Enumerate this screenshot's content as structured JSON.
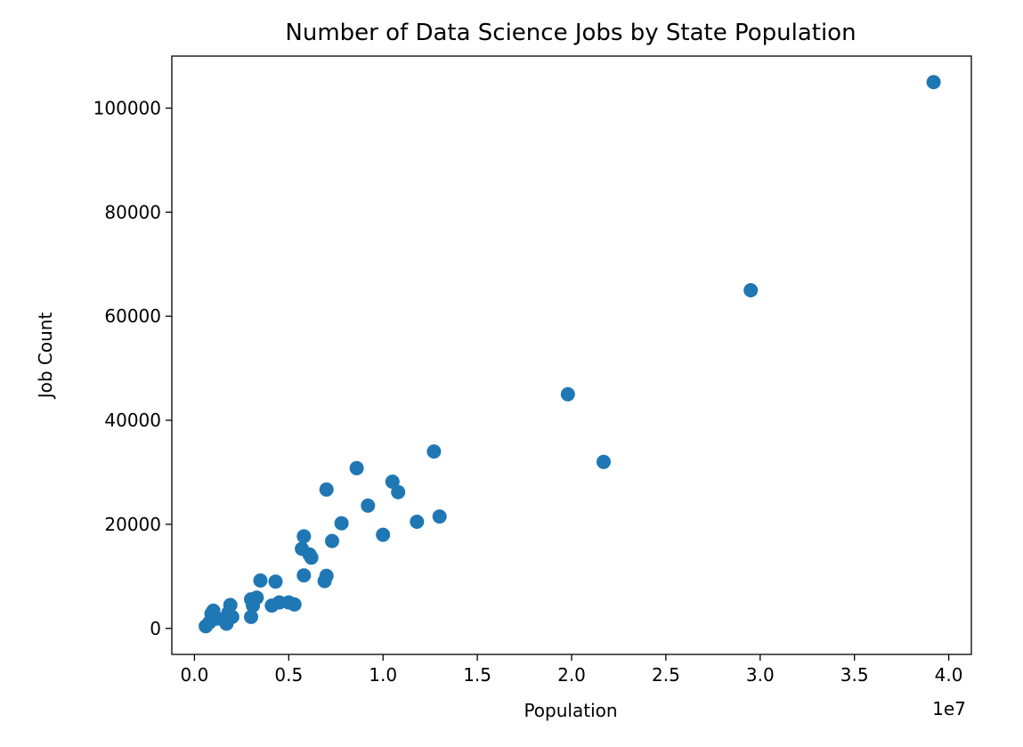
{
  "chart_data": {
    "type": "scatter",
    "title": "Number of Data Science Jobs by State Population",
    "xlabel": "Population",
    "ylabel": "Job Count",
    "x_offset_label": "1e7",
    "xlim": [
      -0.12,
      4.12
    ],
    "ylim": [
      -5000,
      110000
    ],
    "x_ticks": [
      0.0,
      0.5,
      1.0,
      1.5,
      2.0,
      2.5,
      3.0,
      3.5,
      4.0
    ],
    "x_tick_labels": [
      "0.0",
      "0.5",
      "1.0",
      "1.5",
      "2.0",
      "2.5",
      "3.0",
      "3.5",
      "4.0"
    ],
    "y_ticks": [
      0,
      20000,
      40000,
      60000,
      80000,
      100000
    ],
    "y_tick_labels": [
      "0",
      "20000",
      "40000",
      "60000",
      "80000",
      "100000"
    ],
    "grid": false,
    "legend": "none",
    "marker_color": "#1f77b4",
    "series": [
      {
        "x": [
          3.92,
          2.95,
          1.98,
          2.17,
          1.27,
          0.86,
          1.05,
          1.08,
          0.7,
          0.92,
          1.3,
          1.18,
          1.0,
          0.78,
          0.73,
          0.58,
          0.57,
          0.61,
          0.62,
          0.58,
          0.7,
          0.69,
          0.35,
          0.43,
          0.33,
          0.3,
          0.31,
          0.41,
          0.45,
          0.5,
          0.53,
          0.3,
          0.2,
          0.19,
          0.18,
          0.17,
          0.12,
          0.1,
          0.09,
          0.08,
          0.06
        ],
        "y": [
          105000,
          65000,
          45000,
          32000,
          34000,
          30800,
          28200,
          26200,
          26700,
          23600,
          21500,
          20500,
          18000,
          20200,
          16800,
          17700,
          15300,
          14200,
          13600,
          10200,
          10100,
          9100,
          9200,
          9000,
          5900,
          5600,
          4400,
          4400,
          5000,
          5000,
          4600,
          2200,
          2200,
          4500,
          3000,
          900,
          1900,
          3400,
          2800,
          1200,
          400
        ]
      }
    ]
  }
}
